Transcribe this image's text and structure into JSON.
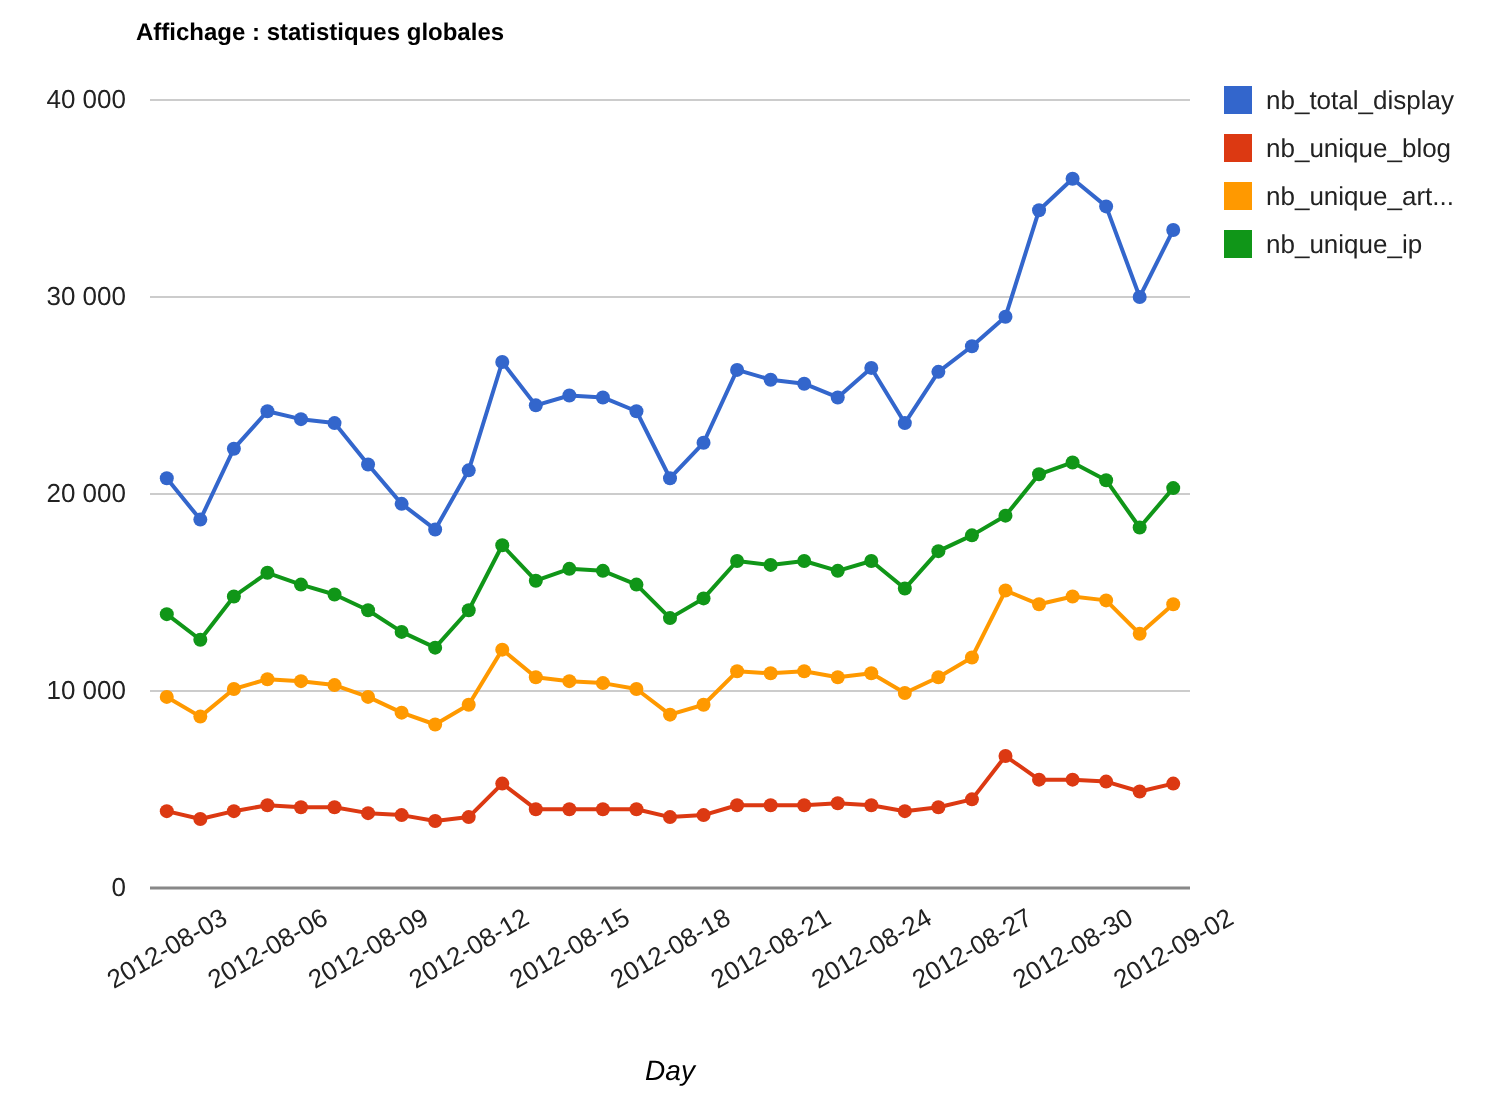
{
  "chart_data": {
    "type": "line",
    "title": "Affichage : statistiques globales",
    "xlabel": "Day",
    "x": [
      "2012-08-03",
      "2012-08-04",
      "2012-08-05",
      "2012-08-06",
      "2012-08-07",
      "2012-08-08",
      "2012-08-09",
      "2012-08-10",
      "2012-08-11",
      "2012-08-12",
      "2012-08-13",
      "2012-08-14",
      "2012-08-15",
      "2012-08-16",
      "2012-08-17",
      "2012-08-18",
      "2012-08-19",
      "2012-08-20",
      "2012-08-21",
      "2012-08-22",
      "2012-08-23",
      "2012-08-24",
      "2012-08-25",
      "2012-08-26",
      "2012-08-27",
      "2012-08-28",
      "2012-08-29",
      "2012-08-30",
      "2012-08-31",
      "2012-09-01",
      "2012-09-02"
    ],
    "series": [
      {
        "name": "nb_total_display",
        "color": "#3366cc",
        "values": [
          20800,
          18700,
          22300,
          24200,
          23800,
          23600,
          21500,
          19500,
          18200,
          21200,
          26700,
          24500,
          25000,
          24900,
          24200,
          20800,
          22600,
          26300,
          25800,
          25600,
          24900,
          26400,
          23600,
          26200,
          27500,
          29000,
          34400,
          36000,
          34600,
          30000,
          33400
        ]
      },
      {
        "name": "nb_unique_blog",
        "color": "#dc3912",
        "values": [
          3900,
          3500,
          3900,
          4200,
          4100,
          4100,
          3800,
          3700,
          3400,
          3600,
          5300,
          4000,
          4000,
          4000,
          4000,
          3600,
          3700,
          4200,
          4200,
          4200,
          4300,
          4200,
          3900,
          4100,
          4500,
          6700,
          5500,
          5500,
          5400,
          4900,
          5300
        ]
      },
      {
        "name": "nb_unique_art...",
        "color": "#ff9900",
        "values": [
          9700,
          8700,
          10100,
          10600,
          10500,
          10300,
          9700,
          8900,
          8300,
          9300,
          12100,
          10700,
          10500,
          10400,
          10100,
          8800,
          9300,
          11000,
          10900,
          11000,
          10700,
          10900,
          9900,
          10700,
          11700,
          15100,
          14400,
          14800,
          14600,
          12900,
          14400
        ]
      },
      {
        "name": "nb_unique_ip",
        "color": "#109618",
        "values": [
          13900,
          12600,
          14800,
          16000,
          15400,
          14900,
          14100,
          13000,
          12200,
          14100,
          17400,
          15600,
          16200,
          16100,
          15400,
          13700,
          14700,
          16600,
          16400,
          16600,
          16100,
          16600,
          15200,
          17100,
          17900,
          18900,
          21000,
          21600,
          20700,
          18300,
          20300
        ]
      }
    ],
    "xlim": [
      "2012-08-02T12:00",
      "2012-09-02T12:00"
    ],
    "xticks": [
      "2012-08-03",
      "2012-08-06",
      "2012-08-09",
      "2012-08-12",
      "2012-08-15",
      "2012-08-18",
      "2012-08-21",
      "2012-08-24",
      "2012-08-27",
      "2012-08-30",
      "2012-09-02"
    ],
    "ylim": [
      0,
      40000
    ],
    "yticks": [
      {
        "value": 0,
        "label": "0"
      },
      {
        "value": 10000,
        "label": "10 000"
      },
      {
        "value": 20000,
        "label": "20 000"
      },
      {
        "value": 30000,
        "label": "30 000"
      },
      {
        "value": 40000,
        "label": "40 000"
      }
    ],
    "grid": "y",
    "legend": "right",
    "marker": "circle",
    "line_style": "solid"
  }
}
